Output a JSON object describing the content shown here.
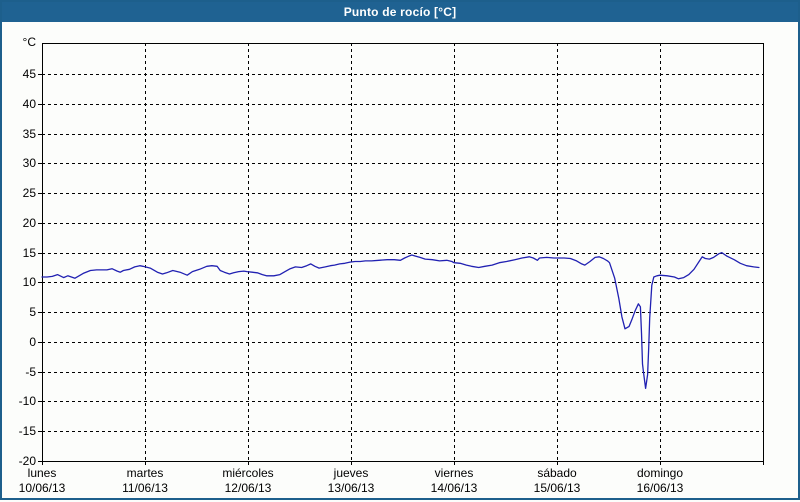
{
  "title_bar": {
    "title": "Punto de rocío [°C]",
    "bg_color": "#1f6292",
    "text_color": "#ffffff"
  },
  "chart_data": {
    "type": "line",
    "title": "Punto de rocío [°C]",
    "y_unit_label": "°C",
    "ylim": [
      -20,
      50.2
    ],
    "y_gridlines": [
      45,
      40,
      35,
      30,
      25,
      20,
      15,
      10,
      5,
      0,
      -5,
      -10,
      -15
    ],
    "y_tick_labels": [
      45,
      40,
      35,
      30,
      25,
      20,
      15,
      10,
      5,
      0,
      -5,
      -10,
      -15,
      -20
    ],
    "grid": "dashed-black",
    "legend_position": "none",
    "x_days": [
      {
        "name": "lunes",
        "date": "10/06/13"
      },
      {
        "name": "martes",
        "date": "11/06/13"
      },
      {
        "name": "miércoles",
        "date": "12/06/13"
      },
      {
        "name": "jueves",
        "date": "13/06/13"
      },
      {
        "name": "viernes",
        "date": "14/06/13"
      },
      {
        "name": "sábado",
        "date": "15/06/13"
      },
      {
        "name": "domingo",
        "date": "16/06/13"
      }
    ],
    "x_span_days": 7,
    "series": [
      {
        "name": "Punto de rocío",
        "color": "#2121b2",
        "x_unit": "days_from_monday_00h",
        "points": [
          [
            0.0,
            10.9
          ],
          [
            0.05,
            10.9
          ],
          [
            0.1,
            11.0
          ],
          [
            0.15,
            11.3
          ],
          [
            0.21,
            10.8
          ],
          [
            0.25,
            11.1
          ],
          [
            0.32,
            10.7
          ],
          [
            0.4,
            11.5
          ],
          [
            0.47,
            12.0
          ],
          [
            0.53,
            12.1
          ],
          [
            0.58,
            12.1
          ],
          [
            0.63,
            12.1
          ],
          [
            0.68,
            12.3
          ],
          [
            0.73,
            11.9
          ],
          [
            0.76,
            11.7
          ],
          [
            0.79,
            12.0
          ],
          [
            0.85,
            12.2
          ],
          [
            0.9,
            12.6
          ],
          [
            0.95,
            12.8
          ],
          [
            0.98,
            12.7
          ],
          [
            1.05,
            12.4
          ],
          [
            1.12,
            11.7
          ],
          [
            1.17,
            11.4
          ],
          [
            1.21,
            11.6
          ],
          [
            1.27,
            12.0
          ],
          [
            1.34,
            11.7
          ],
          [
            1.41,
            11.2
          ],
          [
            1.46,
            11.8
          ],
          [
            1.53,
            12.2
          ],
          [
            1.6,
            12.7
          ],
          [
            1.65,
            12.8
          ],
          [
            1.7,
            12.7
          ],
          [
            1.73,
            12.0
          ],
          [
            1.77,
            11.7
          ],
          [
            1.82,
            11.4
          ],
          [
            1.86,
            11.6
          ],
          [
            1.91,
            11.8
          ],
          [
            1.96,
            11.9
          ],
          [
            1.99,
            11.8
          ],
          [
            2.04,
            11.7
          ],
          [
            2.09,
            11.6
          ],
          [
            2.14,
            11.3
          ],
          [
            2.18,
            11.1
          ],
          [
            2.25,
            11.1
          ],
          [
            2.31,
            11.3
          ],
          [
            2.36,
            11.8
          ],
          [
            2.41,
            12.3
          ],
          [
            2.46,
            12.6
          ],
          [
            2.52,
            12.5
          ],
          [
            2.57,
            12.8
          ],
          [
            2.61,
            13.1
          ],
          [
            2.65,
            12.7
          ],
          [
            2.69,
            12.4
          ],
          [
            2.75,
            12.6
          ],
          [
            2.8,
            12.8
          ],
          [
            2.84,
            12.9
          ],
          [
            2.89,
            13.1
          ],
          [
            2.94,
            13.2
          ],
          [
            2.99,
            13.4
          ],
          [
            3.04,
            13.5
          ],
          [
            3.09,
            13.5
          ],
          [
            3.14,
            13.6
          ],
          [
            3.2,
            13.6
          ],
          [
            3.27,
            13.7
          ],
          [
            3.35,
            13.8
          ],
          [
            3.42,
            13.8
          ],
          [
            3.48,
            13.7
          ],
          [
            3.52,
            14.1
          ],
          [
            3.56,
            14.4
          ],
          [
            3.59,
            14.6
          ],
          [
            3.63,
            14.4
          ],
          [
            3.67,
            14.2
          ],
          [
            3.72,
            13.9
          ],
          [
            3.79,
            13.8
          ],
          [
            3.86,
            13.6
          ],
          [
            3.93,
            13.7
          ],
          [
            3.98,
            13.5
          ],
          [
            4.0,
            13.3
          ],
          [
            4.06,
            13.2
          ],
          [
            4.12,
            12.9
          ],
          [
            4.17,
            12.7
          ],
          [
            4.24,
            12.5
          ],
          [
            4.3,
            12.7
          ],
          [
            4.37,
            12.9
          ],
          [
            4.44,
            13.3
          ],
          [
            4.51,
            13.5
          ],
          [
            4.59,
            13.8
          ],
          [
            4.66,
            14.1
          ],
          [
            4.73,
            14.3
          ],
          [
            4.77,
            14.1
          ],
          [
            4.81,
            13.7
          ],
          [
            4.83,
            14.1
          ],
          [
            4.9,
            14.2
          ],
          [
            4.97,
            14.1
          ],
          [
            5.0,
            14.1
          ],
          [
            5.07,
            14.1
          ],
          [
            5.13,
            14.0
          ],
          [
            5.19,
            13.6
          ],
          [
            5.24,
            13.1
          ],
          [
            5.27,
            12.9
          ],
          [
            5.32,
            13.5
          ],
          [
            5.37,
            14.2
          ],
          [
            5.41,
            14.3
          ],
          [
            5.45,
            14.0
          ],
          [
            5.49,
            13.6
          ],
          [
            5.51,
            13.3
          ],
          [
            5.56,
            10.7
          ],
          [
            5.6,
            7.3
          ],
          [
            5.63,
            4.2
          ],
          [
            5.66,
            2.2
          ],
          [
            5.7,
            2.6
          ],
          [
            5.73,
            3.9
          ],
          [
            5.76,
            5.3
          ],
          [
            5.79,
            6.4
          ],
          [
            5.81,
            5.9
          ],
          [
            5.82,
            1.5
          ],
          [
            5.83,
            -3.7
          ],
          [
            5.84,
            -5.1
          ],
          [
            5.86,
            -7.8
          ],
          [
            5.88,
            -5.5
          ],
          [
            5.89,
            -1.0
          ],
          [
            5.9,
            4.0
          ],
          [
            5.92,
            9.5
          ],
          [
            5.94,
            10.9
          ],
          [
            5.97,
            11.1
          ],
          [
            6.0,
            11.2
          ],
          [
            6.07,
            11.1
          ],
          [
            6.14,
            10.9
          ],
          [
            6.18,
            10.6
          ],
          [
            6.23,
            10.8
          ],
          [
            6.28,
            11.3
          ],
          [
            6.33,
            12.2
          ],
          [
            6.38,
            13.5
          ],
          [
            6.41,
            14.3
          ],
          [
            6.44,
            14.0
          ],
          [
            6.48,
            13.9
          ],
          [
            6.52,
            14.2
          ],
          [
            6.57,
            14.8
          ],
          [
            6.6,
            15.0
          ],
          [
            6.65,
            14.4
          ],
          [
            6.72,
            13.8
          ],
          [
            6.78,
            13.2
          ],
          [
            6.84,
            12.8
          ],
          [
            6.91,
            12.6
          ],
          [
            6.96,
            12.5
          ]
        ]
      }
    ]
  }
}
